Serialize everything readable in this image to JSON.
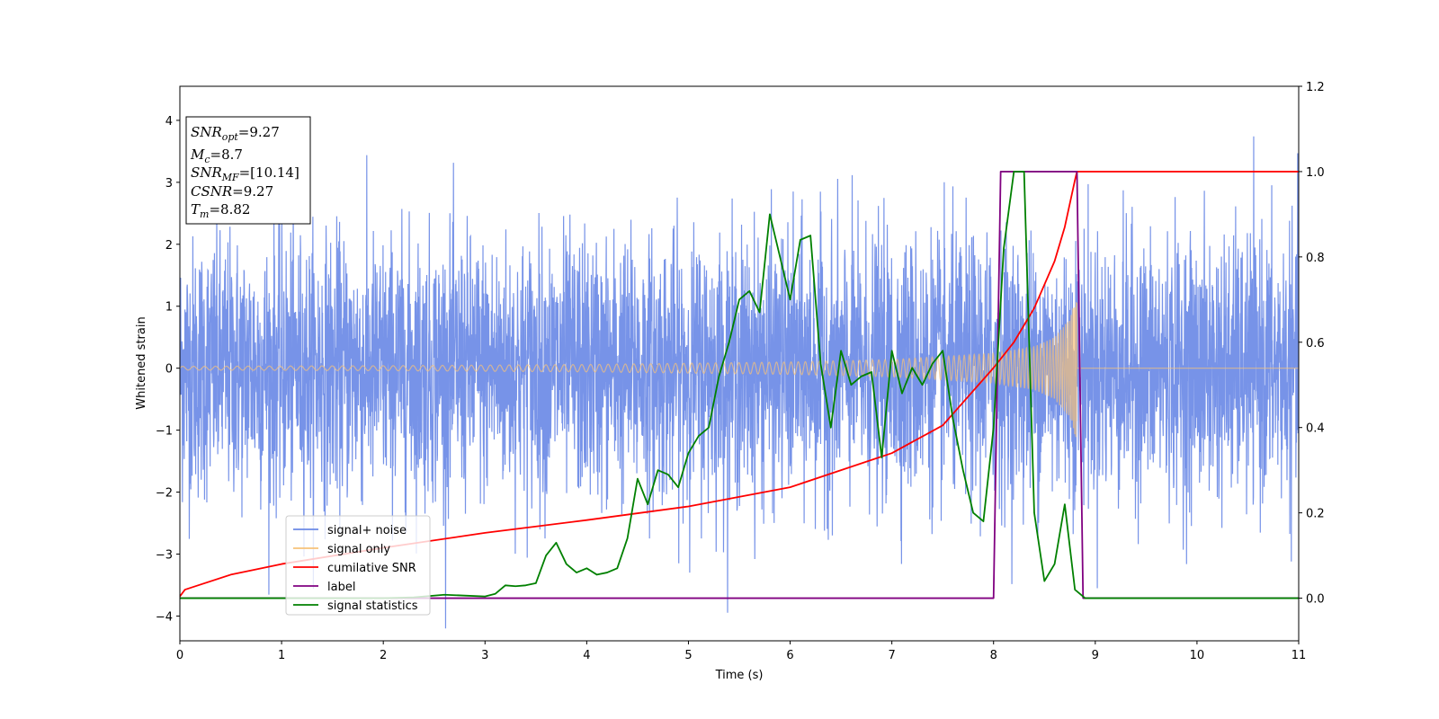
{
  "chart_data": {
    "type": "line",
    "xlabel": "Time (s)",
    "ylabel": "Whitened strain",
    "xlim": [
      0,
      11
    ],
    "ylim": [
      -4.4,
      4.55
    ],
    "y2lim": [
      -0.1,
      1.2
    ],
    "x_ticks": [
      "0",
      "1",
      "2",
      "3",
      "4",
      "5",
      "6",
      "7",
      "8",
      "9",
      "10",
      "11"
    ],
    "y_ticks": [
      "−4",
      "−3",
      "−2",
      "−1",
      "0",
      "1",
      "2",
      "3",
      "4"
    ],
    "y2_ticks": [
      "0.0",
      "0.2",
      "0.4",
      "0.6",
      "0.8",
      "1.0",
      "1.2"
    ],
    "legend": {
      "placement": "lower-left",
      "entries": [
        {
          "name": "signal+ noise",
          "color": "#6b8ae6"
        },
        {
          "name": "signal only",
          "color": "#f7c27a"
        },
        {
          "name": "cumilative SNR",
          "color": "#ff0000"
        },
        {
          "name": "label",
          "color": "#800080"
        },
        {
          "name": "signal statistics",
          "color": "#008000"
        }
      ]
    },
    "info_box": {
      "snr_opt_label": "SNR",
      "snr_opt_sub": "opt",
      "snr_opt_value": "=9.27",
      "mc_label": "M",
      "mc_sub": "c",
      "mc_value": "=8.7",
      "snr_mf_label": "SNR",
      "snr_mf_sub": "MF",
      "snr_mf_value": "=[10.14]",
      "csnr_label": "CSNR",
      "csnr_value": "=9.27",
      "tm_label": "T",
      "tm_sub": "m",
      "tm_value": "=8.82"
    },
    "series": [
      {
        "name": "signal+ noise",
        "axis": "left",
        "color": "#6b8ae6",
        "description_of_values": "white gaussian noise band, typical amplitude ±2, spikes to ±4, spanning 0–11 s"
      },
      {
        "name": "signal only",
        "axis": "left",
        "color": "#f7c27a",
        "chirp_envelope": {
          "t": [
            0,
            2,
            4,
            6,
            7,
            8,
            8.4,
            8.6,
            8.75,
            8.82
          ],
          "amp": [
            0.03,
            0.04,
            0.06,
            0.1,
            0.14,
            0.24,
            0.35,
            0.5,
            0.8,
            1.2
          ]
        },
        "merger_time": 8.82
      },
      {
        "name": "cumilative SNR",
        "axis": "right",
        "color": "#ff0000",
        "x": [
          0,
          0.05,
          0.5,
          1,
          2,
          3,
          4,
          5,
          6,
          7,
          7.5,
          8,
          8.2,
          8.4,
          8.6,
          8.7,
          8.8,
          8.82,
          11
        ],
        "y": [
          0.004,
          0.02,
          0.055,
          0.08,
          0.118,
          0.153,
          0.183,
          0.215,
          0.26,
          0.34,
          0.405,
          0.54,
          0.6,
          0.68,
          0.79,
          0.87,
          0.98,
          1.0,
          1.0
        ]
      },
      {
        "name": "label",
        "axis": "right",
        "color": "#800080",
        "x": [
          0,
          8.0,
          8.07,
          8.82,
          8.88,
          11
        ],
        "y": [
          0,
          0,
          1,
          1,
          0,
          0
        ]
      },
      {
        "name": "signal statistics",
        "axis": "right",
        "color": "#008000",
        "x": [
          0,
          0.5,
          1,
          1.5,
          2,
          2.3,
          2.6,
          2.8,
          3.0,
          3.1,
          3.2,
          3.3,
          3.4,
          3.5,
          3.6,
          3.7,
          3.8,
          3.9,
          4.0,
          4.1,
          4.2,
          4.3,
          4.4,
          4.5,
          4.6,
          4.7,
          4.8,
          4.9,
          5.0,
          5.1,
          5.2,
          5.3,
          5.4,
          5.5,
          5.6,
          5.7,
          5.8,
          5.9,
          6.0,
          6.1,
          6.2,
          6.3,
          6.4,
          6.5,
          6.6,
          6.7,
          6.8,
          6.9,
          7.0,
          7.1,
          7.2,
          7.3,
          7.4,
          7.5,
          7.6,
          7.7,
          7.8,
          7.9,
          8.0,
          8.1,
          8.2,
          8.3,
          8.4,
          8.5,
          8.6,
          8.7,
          8.8,
          8.9,
          9.0,
          11.0
        ],
        "y": [
          0.0,
          0.0,
          0.0,
          0.0,
          0.0,
          0.002,
          0.008,
          0.006,
          0.004,
          0.01,
          0.03,
          0.028,
          0.03,
          0.035,
          0.1,
          0.13,
          0.08,
          0.06,
          0.07,
          0.055,
          0.06,
          0.07,
          0.14,
          0.28,
          0.22,
          0.3,
          0.29,
          0.26,
          0.34,
          0.38,
          0.4,
          0.52,
          0.6,
          0.7,
          0.72,
          0.67,
          0.9,
          0.8,
          0.7,
          0.84,
          0.85,
          0.55,
          0.4,
          0.58,
          0.5,
          0.52,
          0.53,
          0.33,
          0.58,
          0.48,
          0.54,
          0.5,
          0.55,
          0.58,
          0.42,
          0.3,
          0.2,
          0.18,
          0.4,
          0.82,
          1.0,
          1.0,
          0.2,
          0.04,
          0.08,
          0.22,
          0.02,
          0.0,
          0.0,
          0.0
        ]
      }
    ]
  }
}
